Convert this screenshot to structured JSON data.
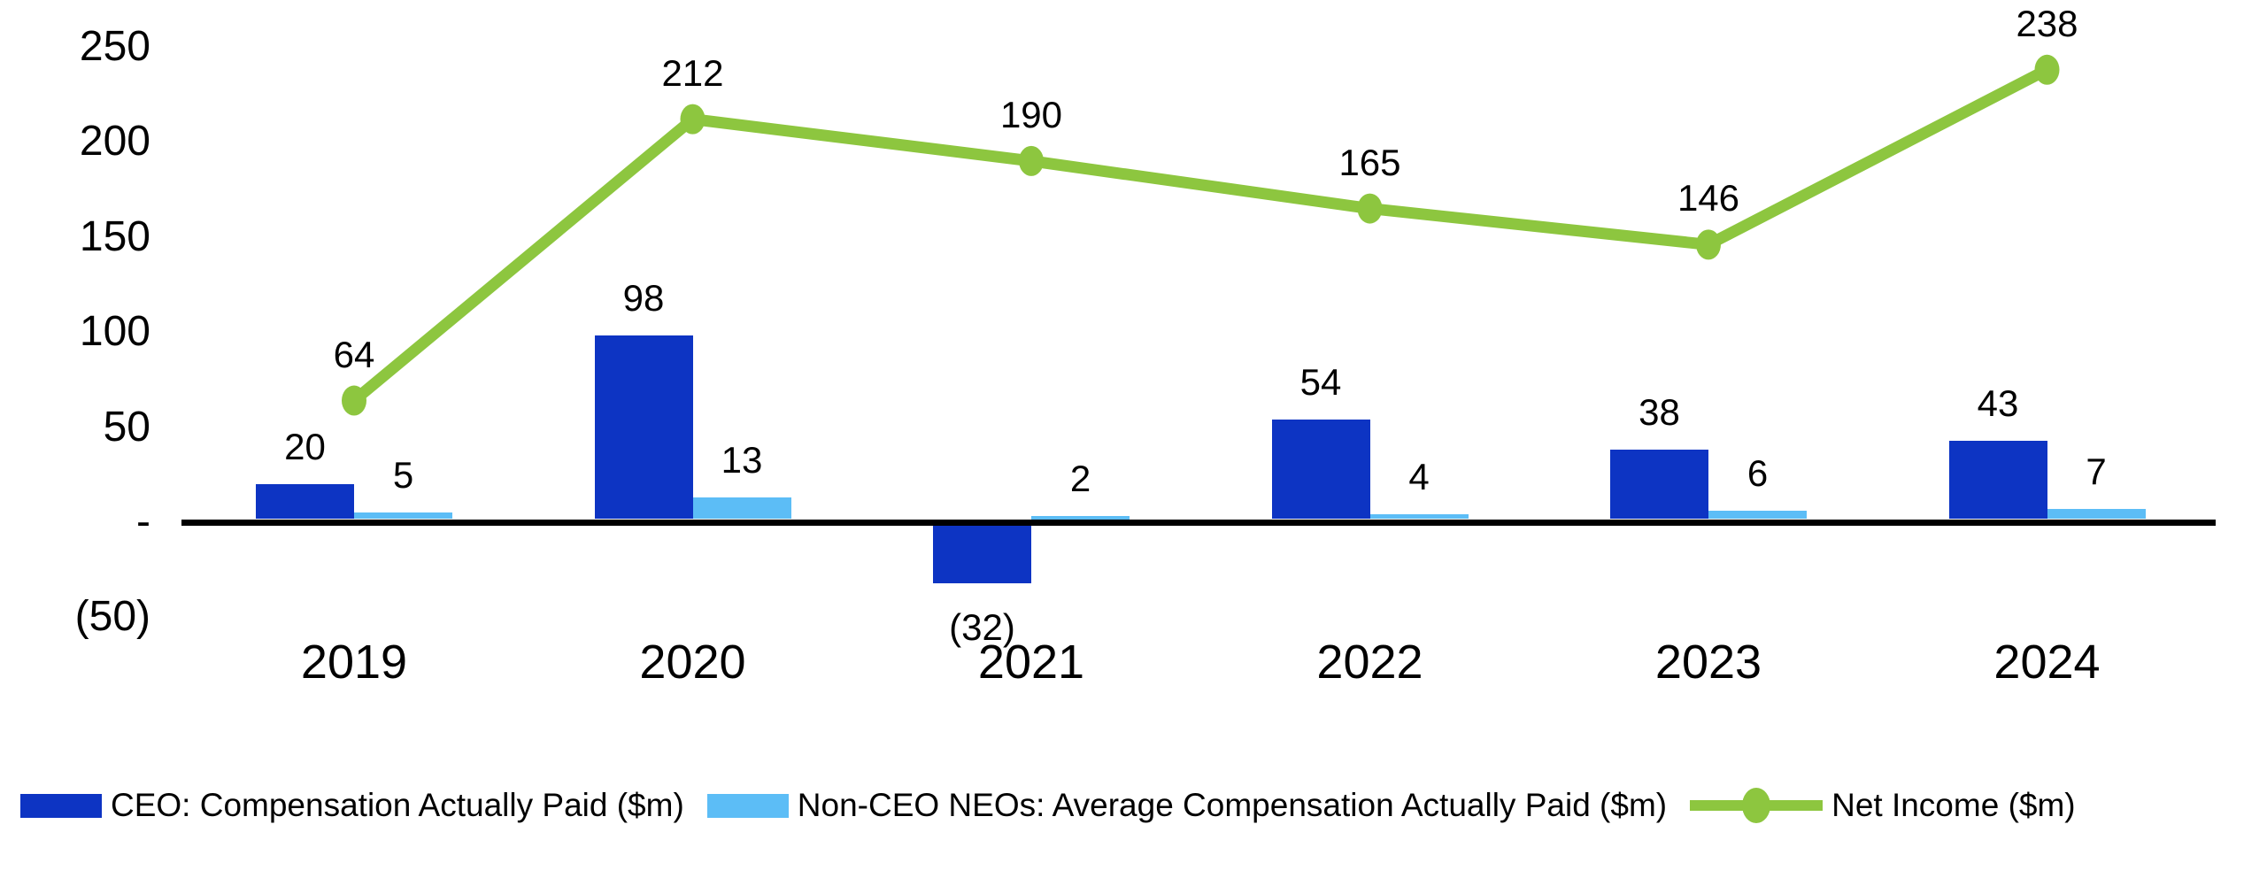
{
  "chart_data": {
    "type": "combo",
    "title": "",
    "xlabel": "",
    "ylabel": "",
    "grid": false,
    "background": "#ffffff",
    "categories": [
      "2019",
      "2020",
      "2021",
      "2022",
      "2023",
      "2024"
    ],
    "series": [
      {
        "name": "CEO: Compensation Actually Paid ($m)",
        "type": "bar",
        "color": "#0D34C3",
        "values": [
          20,
          98,
          -32,
          54,
          38,
          43
        ],
        "labels": [
          "20",
          "98",
          "(32)",
          "54",
          "38",
          "43"
        ]
      },
      {
        "name": "Non-CEO NEOs: Average Compensation Actually Paid ($m)",
        "type": "bar",
        "color": "#5CBDF6",
        "values": [
          5,
          13,
          2,
          4,
          6,
          7
        ],
        "labels": [
          "5",
          "13",
          "2",
          "4",
          "6",
          "7"
        ]
      },
      {
        "name": "Net Income ($m)",
        "type": "line",
        "color": "#8DC63F",
        "values": [
          64,
          212,
          190,
          165,
          146,
          238
        ],
        "labels": [
          "64",
          "212",
          "190",
          "165",
          "146",
          "238"
        ]
      }
    ],
    "y_axis": {
      "min": -50,
      "max": 250,
      "ticks": [
        {
          "label": "250",
          "value": 250
        },
        {
          "label": "200",
          "value": 200
        },
        {
          "label": "150",
          "value": 150
        },
        {
          "label": "100",
          "value": 100
        },
        {
          "label": "50",
          "value": 50
        },
        {
          "label": "-",
          "value": 0
        },
        {
          "label": "(50)",
          "value": -50
        }
      ]
    },
    "legend_position": "bottom",
    "colors": {
      "axis_line": "#000000",
      "text": "#000000"
    }
  }
}
